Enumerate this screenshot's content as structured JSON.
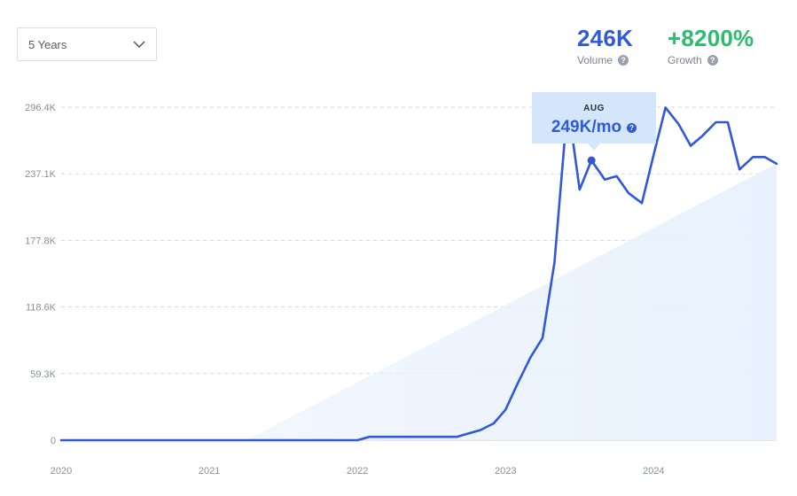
{
  "range_select": {
    "value": "5 Years",
    "icon": "chevron-down-icon"
  },
  "stats": {
    "volume": {
      "value": "246K",
      "label": "Volume",
      "help": "?"
    },
    "growth": {
      "value": "+8200%",
      "label": "Growth",
      "help": "?"
    }
  },
  "tooltip": {
    "month": "AUG",
    "value": "249K/mo",
    "help": "?"
  },
  "colors": {
    "line": "#3058d8",
    "trend_fill": "#e8f1fd",
    "volume": "#2f5bd6",
    "growth": "#2dbb6d",
    "tooltip_bg": "#d3e6fb",
    "grid": "#d6dae0",
    "tick": "#8a909a"
  },
  "chart_data": {
    "type": "line",
    "title": "",
    "xlabel": "",
    "ylabel": "",
    "grid": true,
    "y_ticks": [
      {
        "value": 0,
        "label": "0"
      },
      {
        "value": 59300,
        "label": "59.3K"
      },
      {
        "value": 118600,
        "label": "118.6K"
      },
      {
        "value": 177800,
        "label": "177.8K"
      },
      {
        "value": 237100,
        "label": "237.1K"
      },
      {
        "value": 296400,
        "label": "296.4K"
      }
    ],
    "x_ticks": [
      {
        "value": 2020.0,
        "label": "2020"
      },
      {
        "value": 2021.0,
        "label": "2021"
      },
      {
        "value": 2022.0,
        "label": "2022"
      },
      {
        "value": 2023.0,
        "label": "2023"
      },
      {
        "value": 2024.0,
        "label": "2024"
      }
    ],
    "xlim": [
      2020.0,
      2024.83
    ],
    "ylim": [
      0,
      296400
    ],
    "series": [
      {
        "points": [
          [
            2020.0,
            0
          ],
          [
            2021.0,
            0
          ],
          [
            2022.0,
            0
          ],
          [
            2022.08,
            3000
          ],
          [
            2022.17,
            3000
          ],
          [
            2022.25,
            3000
          ],
          [
            2022.33,
            3000
          ],
          [
            2022.42,
            3000
          ],
          [
            2022.5,
            3000
          ],
          [
            2022.58,
            3000
          ],
          [
            2022.67,
            3000
          ],
          [
            2022.75,
            6000
          ],
          [
            2022.83,
            9000
          ],
          [
            2022.92,
            15000
          ],
          [
            2023.0,
            27000
          ],
          [
            2023.08,
            50000
          ],
          [
            2023.17,
            74000
          ],
          [
            2023.25,
            91000
          ],
          [
            2023.33,
            158000
          ],
          [
            2023.42,
            300000
          ],
          [
            2023.5,
            223000
          ],
          [
            2023.58,
            249000
          ],
          [
            2023.67,
            232000
          ],
          [
            2023.75,
            235000
          ],
          [
            2023.83,
            220000
          ],
          [
            2023.92,
            211000
          ],
          [
            2024.0,
            254000
          ],
          [
            2024.08,
            296000
          ],
          [
            2024.17,
            281000
          ],
          [
            2024.25,
            262000
          ],
          [
            2024.33,
            271000
          ],
          [
            2024.42,
            283000
          ],
          [
            2024.5,
            283000
          ],
          [
            2024.58,
            241000
          ],
          [
            2024.67,
            252000
          ],
          [
            2024.75,
            252000
          ],
          [
            2024.83,
            246000
          ]
        ]
      }
    ],
    "trend": {
      "start": [
        2021.25,
        0
      ],
      "end": [
        2024.83,
        246000
      ]
    },
    "highlight": {
      "x": 2023.58,
      "y": 249000,
      "label": "AUG"
    }
  }
}
